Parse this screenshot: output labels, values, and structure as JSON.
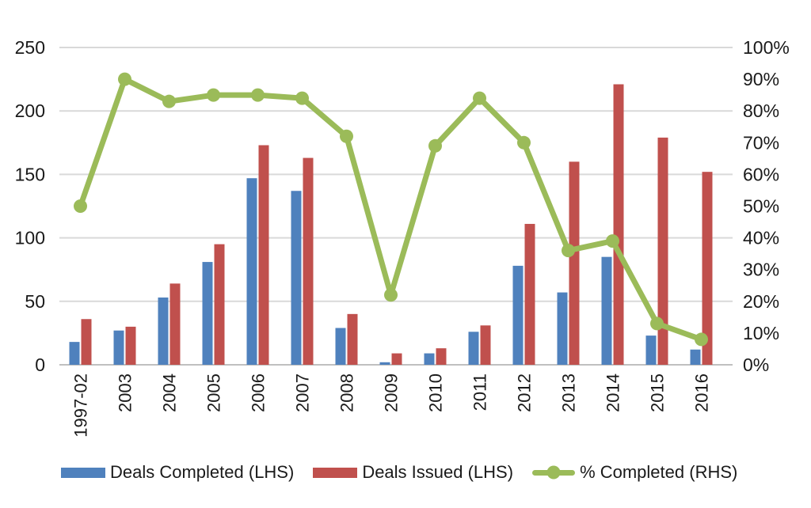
{
  "chart_data": {
    "type": "bar",
    "subtype": "grouped-bar-with-line-combo",
    "title": "",
    "categories": [
      "1997-02",
      "2003",
      "2004",
      "2005",
      "2006",
      "2007",
      "2008",
      "2009",
      "2010",
      "2011",
      "2012",
      "2013",
      "2014",
      "2015",
      "2016"
    ],
    "series": [
      {
        "name": "Deals Completed (LHS)",
        "type": "bar",
        "axis": "left",
        "color": "#4F81BD",
        "values": [
          18,
          27,
          53,
          81,
          147,
          137,
          29,
          2,
          9,
          26,
          78,
          57,
          85,
          23,
          12
        ]
      },
      {
        "name": "Deals Issued (LHS)",
        "type": "bar",
        "axis": "left",
        "color": "#C0504D",
        "values": [
          36,
          30,
          64,
          95,
          173,
          163,
          40,
          9,
          13,
          31,
          111,
          160,
          221,
          179,
          152
        ]
      },
      {
        "name": "% Completed (RHS)",
        "type": "line",
        "axis": "right",
        "color": "#9BBB59",
        "values": [
          50,
          90,
          83,
          85,
          85,
          84,
          72,
          22,
          69,
          84,
          70,
          36,
          39,
          13,
          8
        ]
      }
    ],
    "left_axis": {
      "min": 0,
      "max": 250,
      "ticks": [
        "0",
        "50",
        "100",
        "150",
        "200",
        "250"
      ]
    },
    "right_axis": {
      "min": 0,
      "max": 100,
      "ticks": [
        "0%",
        "10%",
        "20%",
        "30%",
        "40%",
        "50%",
        "60%",
        "70%",
        "80%",
        "90%",
        "100%"
      ]
    },
    "grid": true,
    "gridline_color": "#d9d9d9",
    "axis_text_color": "#1a1a1a",
    "legend_position": "bottom",
    "xlabel": "",
    "ylabel": ""
  },
  "legend": {
    "items": [
      {
        "label": "Deals Completed (LHS)",
        "swatch": "blue-bar-swatch"
      },
      {
        "label": "Deals Issued (LHS)",
        "swatch": "red-bar-swatch"
      },
      {
        "label": "% Completed (RHS)",
        "swatch": "green-line-marker-swatch"
      }
    ]
  }
}
